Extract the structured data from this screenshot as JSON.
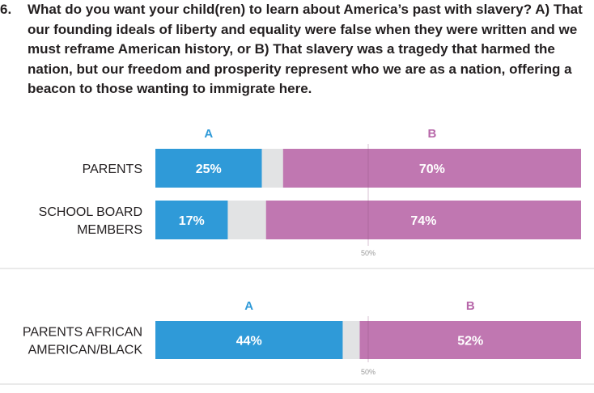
{
  "question": {
    "number": "6.",
    "text": "What do you want your child(ren) to learn about America’s past with slavery? A) That our founding ideals of liberty and equality were false when they were written and we must reframe American history, or B) That slavery was a tragedy that harmed the nation, but our freedom and prosperity represent who we are as a nation, offering a beacon to those wanting to immigrate here."
  },
  "colors": {
    "a": "#2f9ad8",
    "b": "#c077b1",
    "neutral": "#e2e3e4",
    "a_label": "#2f9ad8",
    "b_label": "#b767a9",
    "text": "#231f20",
    "tick": "#9a9a9a",
    "divider": "#d6d6d6"
  },
  "chart_data": [
    {
      "type": "bar",
      "orientation": "horizontal",
      "stacked": true,
      "series_labels": [
        "A",
        "B"
      ],
      "categories": [
        [
          "PARENTS"
        ],
        [
          "SCHOOL BOARD",
          "MEMBERS"
        ]
      ],
      "series": [
        {
          "name": "A",
          "values": [
            25,
            17
          ]
        },
        {
          "name": "B",
          "values": [
            70,
            74
          ]
        }
      ],
      "remainder_color": "neutral",
      "xlim": [
        0,
        100
      ],
      "reference_line": {
        "value": 50,
        "label": "50%"
      }
    },
    {
      "type": "bar",
      "orientation": "horizontal",
      "stacked": true,
      "series_labels": [
        "A",
        "B"
      ],
      "categories": [
        [
          "PARENTS AFRICAN",
          "AMERICAN/BLACK"
        ]
      ],
      "series": [
        {
          "name": "A",
          "values": [
            44
          ]
        },
        {
          "name": "B",
          "values": [
            52
          ]
        }
      ],
      "remainder_color": "neutral",
      "xlim": [
        0,
        100
      ],
      "reference_line": {
        "value": 50,
        "label": "50%"
      }
    }
  ]
}
